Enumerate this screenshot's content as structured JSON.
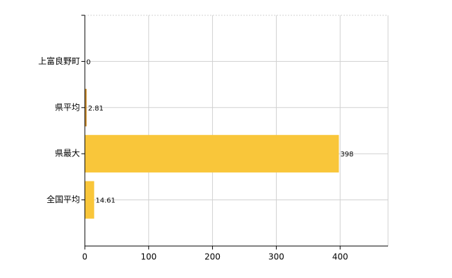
{
  "chart_data": {
    "type": "bar",
    "orientation": "horizontal",
    "categories": [
      "上富良野町",
      "県平均",
      "県最大",
      "全国平均"
    ],
    "values": [
      0,
      2.81,
      398,
      14.61
    ],
    "colors": [
      "#f9c63a",
      "#c98a2a",
      "#f9c63a",
      "#f9c63a"
    ],
    "xlim": [
      0,
      475
    ],
    "xticks": [
      0,
      100,
      200,
      300,
      400
    ],
    "grid": true
  }
}
